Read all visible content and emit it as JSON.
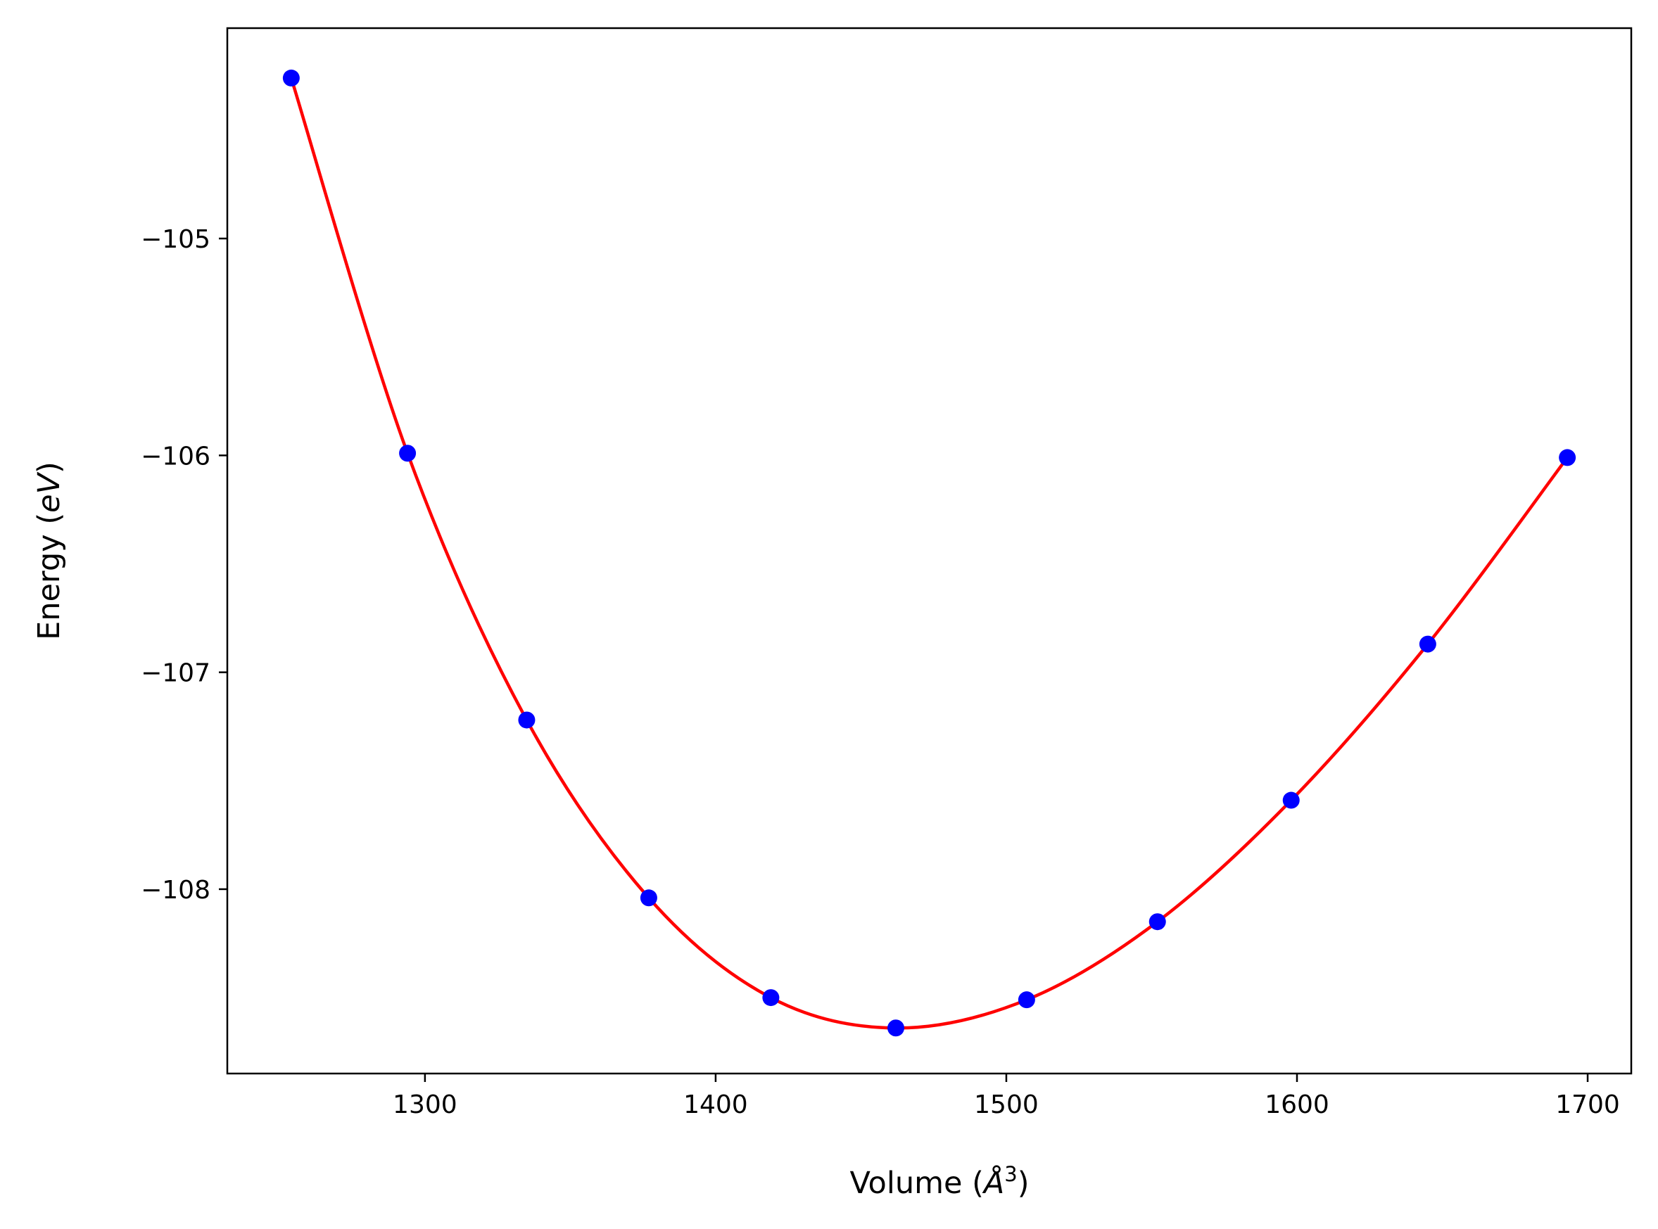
{
  "chart_data": {
    "type": "scatter",
    "xlabel": "Volume (",
    "xlabel_italic": "Å",
    "xlabel_sup": "3",
    "xlabel_end": ")",
    "ylabel": "Energy (",
    "ylabel_italic": "eV",
    "ylabel_end": ")",
    "xlim": [
      1232,
      1715
    ],
    "ylim": [
      -108.85,
      -104.03
    ],
    "xticks": [
      1300,
      1400,
      1500,
      1600,
      1700
    ],
    "yticks": [
      -105,
      -106,
      -107,
      -108
    ],
    "xtick_labels": [
      "1300",
      "1400",
      "1500",
      "1600",
      "1700"
    ],
    "ytick_labels": [
      "−105",
      "−106",
      "−107",
      "−108"
    ],
    "grid": false,
    "series": [
      {
        "kind": "points",
        "color": "#0000ff",
        "x": [
          1254,
          1294,
          1335,
          1377,
          1419,
          1462,
          1507,
          1552,
          1598,
          1645,
          1693
        ],
        "y": [
          -104.26,
          -105.99,
          -107.22,
          -108.04,
          -108.5,
          -108.64,
          -108.51,
          -108.15,
          -107.59,
          -106.87,
          -106.01
        ]
      },
      {
        "kind": "fit-curve",
        "color": "#ff0000",
        "x": [
          1254,
          1294,
          1335,
          1377,
          1419,
          1462,
          1507,
          1552,
          1598,
          1645,
          1693
        ],
        "y": [
          -104.26,
          -105.99,
          -107.22,
          -108.04,
          -108.5,
          -108.64,
          -108.51,
          -108.15,
          -107.59,
          -106.87,
          -106.01
        ]
      }
    ]
  }
}
